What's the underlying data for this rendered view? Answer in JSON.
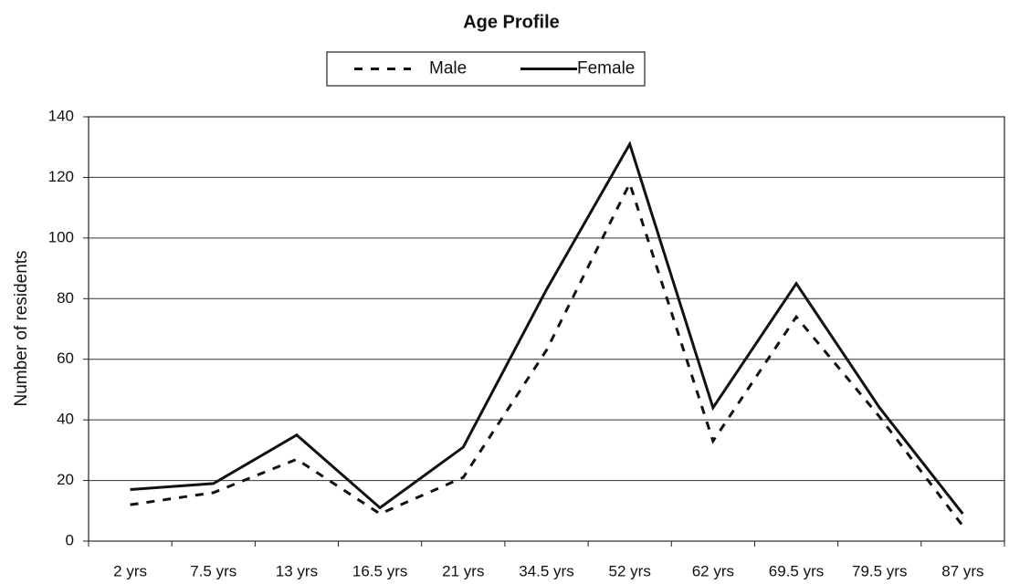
{
  "chart_data": {
    "type": "line",
    "title": "Age Profile",
    "y_label": "Number of residents",
    "categories": [
      "2 yrs",
      "7.5 yrs",
      "13 yrs",
      "16.5 yrs",
      "21 yrs",
      "34.5 yrs",
      "52 yrs",
      "62 yrs",
      "69.5 yrs",
      "79.5 yrs",
      "87 yrs"
    ],
    "series": [
      {
        "name": "Male",
        "color": "#111111",
        "style": "dashed",
        "values": [
          12,
          16,
          27,
          9,
          21,
          63,
          118,
          33,
          74,
          41,
          5
        ]
      },
      {
        "name": "Female",
        "color": "#111111",
        "style": "solid",
        "values": [
          17,
          19,
          35,
          11,
          31,
          83,
          131,
          44,
          85,
          44,
          9
        ]
      }
    ],
    "ylim": [
      0,
      140
    ],
    "yticks": [
      0,
      20,
      40,
      60,
      80,
      100,
      120,
      140
    ],
    "grid": true,
    "legend": "top"
  }
}
